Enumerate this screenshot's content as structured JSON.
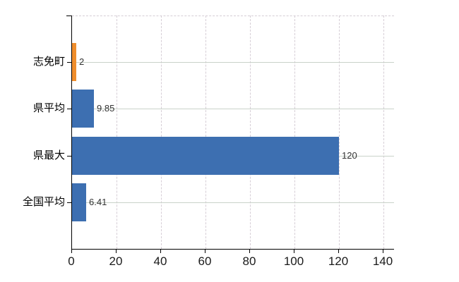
{
  "chart_data": {
    "type": "bar",
    "orientation": "horizontal",
    "title": "",
    "xlabel": "",
    "ylabel": "",
    "categories": [
      "志免町",
      "県平均",
      "県最大",
      "全国平均"
    ],
    "values": [
      2,
      9.85,
      120,
      6.41
    ],
    "value_labels": [
      "2",
      "9.85",
      "120",
      "6.41"
    ],
    "bar_colors": [
      "#ef8e2d",
      "#3d6fb1",
      "#3d6fb1",
      "#3d6fb1"
    ],
    "x_ticks": [
      0,
      20,
      40,
      60,
      80,
      100,
      120,
      140
    ],
    "x_tick_labels": [
      "0",
      "20",
      "40",
      "60",
      "80",
      "100",
      "120",
      "140"
    ],
    "xlim": [
      0,
      145
    ],
    "grid": true,
    "legend": "none",
    "colors": {
      "bar_blue": "#3d6fb1",
      "bar_orange": "#ef8e2d",
      "axis": "#000000",
      "gridline_dashed": "#d6ced6",
      "gridline_category": "#c9d2c9",
      "tick_label": "#1a1a1a",
      "value_label": "#333333",
      "background": "#ffffff"
    }
  }
}
